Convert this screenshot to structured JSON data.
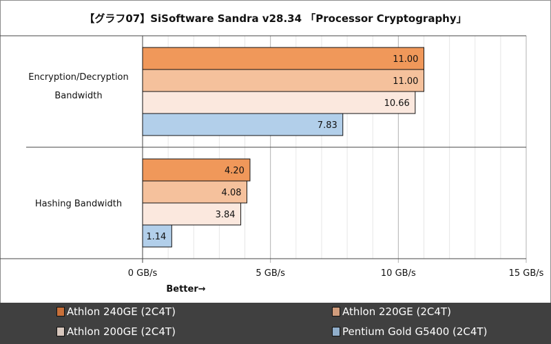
{
  "chart_data": {
    "type": "bar",
    "orientation": "horizontal",
    "title": "【グラフ07】SiSoftware Sandra v28.34 「Processor Cryptography」",
    "categories": [
      "Encryption/Decryption Bandwidth",
      "Hashing Bandwidth"
    ],
    "series": [
      {
        "name": "Athlon 240GE (2C4T)",
        "color": "#f0985a",
        "legend_color": "#c8703a",
        "values": [
          11.0,
          4.2
        ]
      },
      {
        "name": "Athlon 220GE (2C4T)",
        "color": "#f5c19c",
        "legend_color": "#d09c7c",
        "values": [
          11.0,
          4.08
        ]
      },
      {
        "name": "Athlon 200GE (2C4T)",
        "color": "#fbe8de",
        "legend_color": "#d8c8be",
        "values": [
          10.66,
          3.84
        ]
      },
      {
        "name": "Pentium Gold G5400 (2C4T)",
        "color": "#b2cfea",
        "legend_color": "#90aecb",
        "values": [
          7.83,
          1.14
        ]
      }
    ],
    "xlim": [
      0,
      15
    ],
    "xticks": [
      0,
      5,
      10,
      15
    ],
    "xtick_labels": [
      "0 GB/s",
      "5 GB/s",
      "10 GB/s",
      "15 GB/s"
    ],
    "xlabel": "Better→",
    "grid": true,
    "legend_position": "bottom"
  }
}
